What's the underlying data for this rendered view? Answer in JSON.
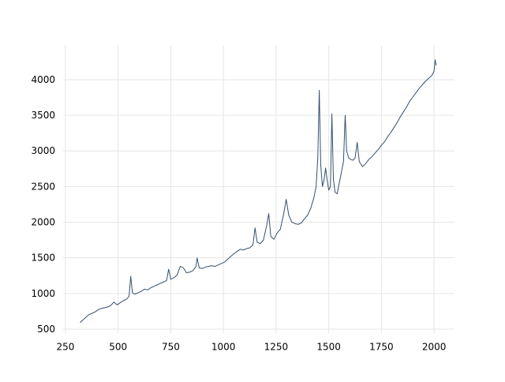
{
  "chart_data": {
    "type": "line",
    "x": [
      320,
      330,
      345,
      360,
      375,
      390,
      405,
      420,
      435,
      450,
      465,
      480,
      495,
      510,
      525,
      540,
      552,
      560,
      568,
      580,
      595,
      610,
      625,
      640,
      655,
      670,
      685,
      700,
      715,
      730,
      740,
      750,
      765,
      780,
      795,
      810,
      825,
      840,
      855,
      870,
      875,
      885,
      900,
      915,
      930,
      945,
      960,
      975,
      990,
      1005,
      1020,
      1035,
      1050,
      1065,
      1080,
      1095,
      1110,
      1125,
      1140,
      1150,
      1160,
      1175,
      1190,
      1205,
      1215,
      1225,
      1240,
      1255,
      1270,
      1285,
      1298,
      1310,
      1325,
      1340,
      1355,
      1370,
      1385,
      1400,
      1415,
      1430,
      1440,
      1448,
      1455,
      1462,
      1470,
      1478,
      1485,
      1492,
      1500,
      1508,
      1515,
      1522,
      1530,
      1540,
      1550,
      1560,
      1570,
      1578,
      1585,
      1595,
      1605,
      1615,
      1625,
      1635,
      1645,
      1660,
      1675,
      1690,
      1705,
      1720,
      1735,
      1750,
      1765,
      1780,
      1795,
      1810,
      1825,
      1840,
      1855,
      1870,
      1885,
      1900,
      1915,
      1930,
      1945,
      1960,
      1975,
      1990,
      2000,
      2005,
      2010
    ],
    "series": [
      {
        "color": "#34506e",
        "values": [
          590,
          620,
          660,
          700,
          720,
          740,
          770,
          790,
          800,
          810,
          830,
          880,
          840,
          870,
          900,
          920,
          960,
          1240,
          1010,
          990,
          1010,
          1030,
          1060,
          1050,
          1080,
          1100,
          1120,
          1140,
          1160,
          1180,
          1340,
          1200,
          1220,
          1260,
          1380,
          1360,
          1290,
          1300,
          1320,
          1380,
          1500,
          1360,
          1350,
          1370,
          1380,
          1390,
          1380,
          1400,
          1420,
          1440,
          1480,
          1520,
          1560,
          1590,
          1620,
          1610,
          1630,
          1640,
          1680,
          1920,
          1720,
          1700,
          1750,
          1950,
          2120,
          1800,
          1760,
          1850,
          1900,
          2100,
          2320,
          2100,
          2000,
          1980,
          1970,
          1990,
          2050,
          2100,
          2200,
          2350,
          2500,
          2900,
          3850,
          2800,
          2500,
          2600,
          2760,
          2600,
          2450,
          2500,
          3520,
          2600,
          2420,
          2400,
          2550,
          2700,
          2850,
          3500,
          3000,
          2900,
          2880,
          2870,
          2900,
          3120,
          2850,
          2780,
          2820,
          2880,
          2920,
          2970,
          3020,
          3080,
          3130,
          3200,
          3260,
          3330,
          3400,
          3480,
          3550,
          3620,
          3700,
          3760,
          3820,
          3880,
          3930,
          3980,
          4020,
          4060,
          4120,
          4280,
          4200
        ]
      }
    ],
    "xlim": [
      239,
      2097
    ],
    "ylim": [
      440,
      4480
    ],
    "xticks": [
      250,
      500,
      750,
      1000,
      1250,
      1500,
      1750,
      2000
    ],
    "yticks": [
      500,
      1000,
      1500,
      2000,
      2500,
      3000,
      3500,
      4000
    ],
    "grid": true
  }
}
